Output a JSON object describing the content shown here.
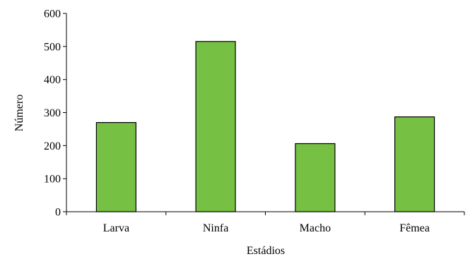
{
  "chart_data": {
    "type": "bar",
    "title": "",
    "xlabel": "Estádios",
    "ylabel": "Número",
    "categories": [
      "Larva",
      "Ninfa",
      "Macho",
      "Fêmea"
    ],
    "values": [
      270,
      515,
      206,
      287
    ],
    "ylim": [
      0,
      600
    ],
    "yticks": [
      "0",
      "100",
      "200",
      "300",
      "400",
      "500",
      "600"
    ],
    "grid": false,
    "legend": "none",
    "bar_color": "#76c043"
  }
}
